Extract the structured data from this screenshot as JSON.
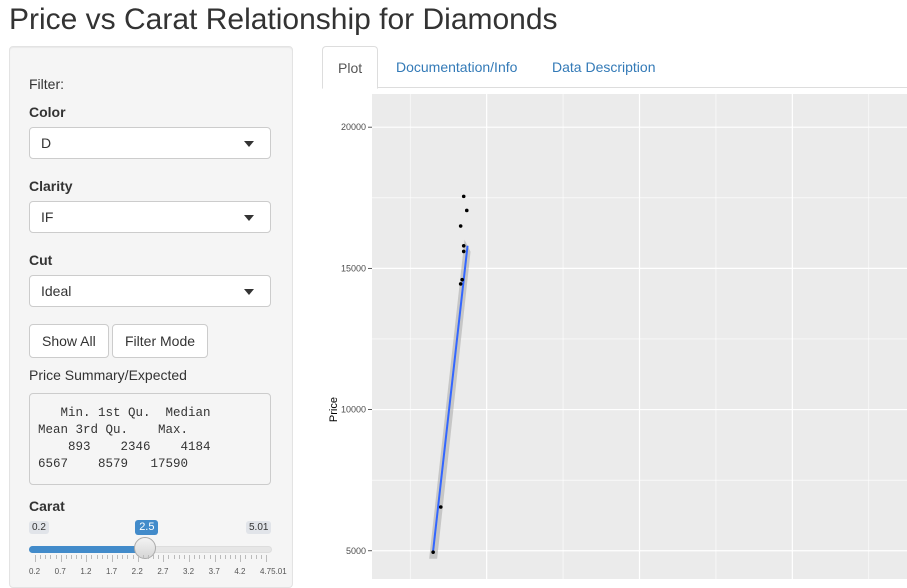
{
  "page": {
    "title": "Price vs Carat Relationship for Diamonds"
  },
  "sidebar": {
    "filter_label": "Filter:",
    "color": {
      "label": "Color",
      "value": "D"
    },
    "clarity": {
      "label": "Clarity",
      "value": "IF"
    },
    "cut": {
      "label": "Cut",
      "value": "Ideal"
    },
    "buttons": {
      "show_all": "Show All",
      "filter_mode": "Filter Mode"
    },
    "summary": {
      "label": "Price Summary/Expected",
      "text": "   Min. 1st Qu.  Median\nMean 3rd Qu.    Max.\n    893    2346    4184\n6567    8579   17590"
    },
    "carat": {
      "label": "Carat",
      "min": "0.2",
      "max": "5.01",
      "value": "2.5",
      "value_num": 2.5,
      "min_num": 0.2,
      "max_num": 5.01,
      "tick_labels": [
        "0.2",
        "0.7",
        "1.2",
        "1.7",
        "2.2",
        "2.7",
        "3.2",
        "3.7",
        "4.2",
        "4.75.01"
      ]
    }
  },
  "tabs": [
    {
      "label": "Plot",
      "active": true
    },
    {
      "label": "Documentation/Info",
      "active": false
    },
    {
      "label": "Data Description",
      "active": false
    }
  ],
  "chart_data": {
    "type": "scatter",
    "ylabel": "Price",
    "y_ticks": [
      "5000",
      "10000",
      "15000",
      "20000"
    ],
    "y_tick_values": [
      5000,
      10000,
      15000,
      20000
    ],
    "ylim": [
      5000,
      21000
    ],
    "xlim": [
      0,
      3.5
    ],
    "grid": true,
    "points": [
      {
        "x": 0.4,
        "y": 4950
      },
      {
        "x": 0.45,
        "y": 6550
      },
      {
        "x": 0.58,
        "y": 14450
      },
      {
        "x": 0.59,
        "y": 14600
      },
      {
        "x": 0.6,
        "y": 15600
      },
      {
        "x": 0.6,
        "y": 15800
      },
      {
        "x": 0.58,
        "y": 16500
      },
      {
        "x": 0.62,
        "y": 17050
      },
      {
        "x": 0.6,
        "y": 17550
      }
    ],
    "fit_line": {
      "x": [
        0.4,
        0.625
      ],
      "y": [
        5000,
        15800
      ]
    },
    "colors": {
      "panel": "#ebebeb",
      "grid": "#ffffff",
      "fit": "#3366ff",
      "band": "#999999",
      "point": "#000000"
    }
  }
}
